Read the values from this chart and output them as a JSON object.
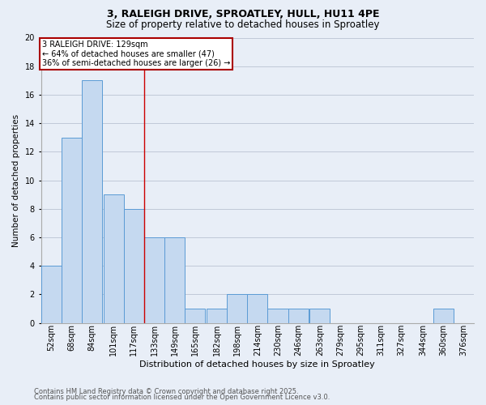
{
  "title1": "3, RALEIGH DRIVE, SPROATLEY, HULL, HU11 4PE",
  "title2": "Size of property relative to detached houses in Sproatley",
  "xlabel": "Distribution of detached houses by size in Sproatley",
  "ylabel": "Number of detached properties",
  "bar_labels": [
    "52sqm",
    "68sqm",
    "84sqm",
    "101sqm",
    "117sqm",
    "133sqm",
    "149sqm",
    "165sqm",
    "182sqm",
    "198sqm",
    "214sqm",
    "230sqm",
    "246sqm",
    "263sqm",
    "279sqm",
    "295sqm",
    "311sqm",
    "327sqm",
    "344sqm",
    "360sqm",
    "376sqm"
  ],
  "bar_values": [
    4,
    13,
    17,
    9,
    8,
    6,
    6,
    1,
    1,
    2,
    2,
    1,
    1,
    1,
    0,
    0,
    0,
    0,
    0,
    1,
    0
  ],
  "bar_color": "#c5d9f0",
  "bar_edge_color": "#5b9bd5",
  "annotation_line1": "3 RALEIGH DRIVE: 129sqm",
  "annotation_line2": "← 64% of detached houses are smaller (47)",
  "annotation_line3": "36% of semi-detached houses are larger (26) →",
  "annotation_box_color": "#ffffff",
  "annotation_box_edge_color": "#aa0000",
  "red_line_color": "#cc0000",
  "ylim": [
    0,
    20
  ],
  "yticks": [
    0,
    2,
    4,
    6,
    8,
    10,
    12,
    14,
    16,
    18,
    20
  ],
  "grid_color": "#c0c8d8",
  "bg_color": "#e8eef7",
  "footnote1": "Contains HM Land Registry data © Crown copyright and database right 2025.",
  "footnote2": "Contains public sector information licensed under the Open Government Licence v3.0.",
  "title1_fontsize": 9,
  "title2_fontsize": 8.5,
  "xlabel_fontsize": 8,
  "ylabel_fontsize": 7.5,
  "tick_fontsize": 7,
  "footnote_fontsize": 6,
  "annotation_fontsize": 7,
  "bin_width": 16,
  "bin_starts": [
    52,
    68,
    84,
    101,
    117,
    133,
    149,
    165,
    182,
    198,
    214,
    230,
    246,
    263,
    279,
    295,
    311,
    327,
    344,
    360,
    376
  ],
  "red_line_x": 133
}
